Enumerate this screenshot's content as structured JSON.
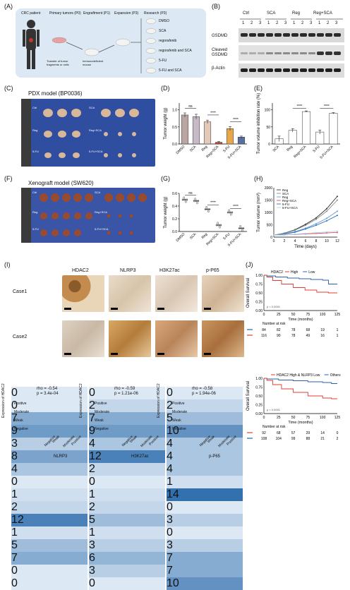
{
  "labels": {
    "A": "(A)",
    "B": "(B)",
    "C": "(C)",
    "D": "(D)",
    "E": "(E)",
    "F": "(F)",
    "G": "(G)",
    "H": "(H)",
    "I": "(I)",
    "J": "(J)"
  },
  "panelA": {
    "steps": [
      "CRC patient",
      "Primary tumors (P0)",
      "Engraftment (P1)",
      "Expansion (P3)",
      "Research (P3)"
    ],
    "transfer_text": "Transfer of tumor fragments or cells",
    "mice_text": "Immunodeficient mouse",
    "treatments": [
      "DMSO",
      "SCA",
      "regorafenib",
      "regorafenib and SCA",
      "5-FU",
      "5-FU and SCA"
    ]
  },
  "panelB": {
    "groups": [
      "Ctrl",
      "SCA",
      "Reg",
      "Reg+SCA"
    ],
    "lanes": [
      "1",
      "2",
      "3",
      "1",
      "2",
      "3",
      "1",
      "2",
      "3",
      "1",
      "2",
      "3"
    ],
    "rows": [
      "GSDMD",
      "Cleaved GSDMD",
      "β-Actin"
    ]
  },
  "panelC": {
    "title": "PDX model (BP0036)",
    "rows": [
      "Ctrl",
      "Reg",
      "5-FU"
    ],
    "right_labels": [
      "SCA",
      "Reg+SCA",
      "5-FU+SCA"
    ]
  },
  "panelF": {
    "title": "Xenograft model (SW620)",
    "rows": [
      "Ctrl",
      "Reg",
      "5-FU"
    ],
    "right_labels": [
      "SCA",
      "Reg+SCA",
      "5-FU+SCA"
    ]
  },
  "chartD": {
    "type": "bar",
    "ylabel": "Tumor weight (g)",
    "categories": [
      "DMSO",
      "SCA",
      "Reg",
      "Reg+SCA",
      "5-FU",
      "5-FU+SCA"
    ],
    "values": [
      0.85,
      0.8,
      0.65,
      0.05,
      0.45,
      0.2
    ],
    "errors": [
      0.06,
      0.07,
      0.05,
      0.02,
      0.06,
      0.03
    ],
    "colors": [
      "#b9a6a2",
      "#c8b9c6",
      "#e3c9b8",
      "#c2522e",
      "#e7a74d",
      "#5a6f9d"
    ],
    "ylim": [
      0,
      1.2
    ],
    "yticks": [
      "0.0",
      "0.5",
      "1.0"
    ],
    "sig": [
      "ns",
      "****",
      "****"
    ]
  },
  "chartE": {
    "type": "bar",
    "ylabel": "Tumor volume inhibition rate (%)",
    "categories": [
      "SCA",
      "Reg",
      "Reg+SCA",
      "5-FU",
      "5-FU+SCA"
    ],
    "values": [
      15,
      40,
      95,
      35,
      90
    ],
    "errors": [
      8,
      5,
      2,
      6,
      2
    ],
    "colors": [
      "#ffffff",
      "#ffffff",
      "#ffffff",
      "#ffffff",
      "#ffffff"
    ],
    "ylim": [
      0,
      120
    ],
    "yticks": [
      "0",
      "50",
      "100"
    ],
    "sig": [
      "****",
      "****"
    ]
  },
  "chartG": {
    "type": "scatter",
    "ylabel": "Tumor weight (g)",
    "categories": [
      "DMSO",
      "SCA",
      "Reg",
      "Reg+SCA",
      "5-FU",
      "5-FU+SCA"
    ],
    "values": [
      0.5,
      0.48,
      0.35,
      0.1,
      0.3,
      0.05
    ],
    "ylim": [
      0,
      0.6
    ],
    "yticks": [
      "0.0",
      "0.2",
      "0.4",
      "0.6"
    ],
    "sig": [
      "ns",
      "****",
      "****"
    ]
  },
  "chartH": {
    "type": "line",
    "xlabel": "Time (days)",
    "ylabel": "Tumor volume (mm³)",
    "x": [
      0,
      2,
      4,
      6,
      8,
      10,
      12
    ],
    "xticks": [
      "0",
      "2",
      "4",
      "6",
      "8",
      "10",
      "12"
    ],
    "yticks": [
      "0",
      "500",
      "1000",
      "1500",
      "2000"
    ],
    "ylim": [
      0,
      2000
    ],
    "series": [
      {
        "name": "Reg",
        "color": "#333333",
        "values": [
          80,
          160,
          300,
          520,
          780,
          1150,
          1650
        ]
      },
      {
        "name": "SCA",
        "color": "#888888",
        "values": [
          80,
          150,
          280,
          480,
          720,
          1050,
          1500
        ]
      },
      {
        "name": "Reg",
        "color": "#5b9bd5",
        "values": [
          80,
          130,
          220,
          360,
          540,
          760,
          1050
        ]
      },
      {
        "name": "Reg+SCA",
        "color": "#e84a5f",
        "values": [
          80,
          90,
          110,
          130,
          150,
          170,
          190
        ]
      },
      {
        "name": "5-FU",
        "color": "#2c6fbb",
        "values": [
          80,
          120,
          200,
          330,
          480,
          660,
          880
        ]
      },
      {
        "name": "5-FU+SCA",
        "color": "#a6d8f0",
        "values": [
          80,
          95,
          120,
          150,
          180,
          210,
          240
        ]
      }
    ]
  },
  "panelI": {
    "markers": [
      "HDAC2",
      "NLRP3",
      "H3K27ac",
      "p-P65"
    ],
    "cases": [
      "Case1",
      "Case2"
    ]
  },
  "heatmaps": [
    {
      "rho": "rho = -0.54",
      "p": "p = 3.4e-04",
      "xlabel": "NLRP3",
      "matrix": [
        [
          0,
          0,
          7,
          9
        ],
        [
          3,
          8,
          4,
          0
        ],
        [
          1,
          2,
          12,
          1
        ],
        [
          5,
          7,
          0,
          0
        ]
      ]
    },
    {
      "rho": "rho = -0.59",
      "p": "p = 1.21e-06",
      "xlabel": "H3K27ac",
      "matrix": [
        [
          0,
          2,
          7,
          9
        ],
        [
          4,
          12,
          2,
          0
        ],
        [
          1,
          2,
          5,
          1
        ],
        [
          3,
          6,
          3,
          0
        ]
      ]
    },
    {
      "rho": "rho = -0.58",
      "p": "p = 1.94e-06",
      "xlabel": "p-P65",
      "matrix": [
        [
          0,
          2,
          5,
          10
        ],
        [
          4,
          4,
          4,
          1
        ],
        [
          14,
          0,
          3,
          0
        ],
        [
          3,
          7,
          7,
          10
        ]
      ]
    }
  ],
  "heatmap_common": {
    "ylabel": "Expression of HDAC2",
    "rows": [
      "Positive",
      "Moderate",
      "Weak",
      "Negative"
    ],
    "cols": [
      "Negative",
      "Weak",
      "Moderate",
      "Positive"
    ]
  },
  "km1": {
    "type": "line",
    "legend": [
      "HDAC2",
      "High",
      "Low"
    ],
    "ylabel": "Overall Survival",
    "xlabel": "Time (months)",
    "pvalue": "p < 0.0001",
    "risk_title": "Number at risk",
    "xticks": [
      "0",
      "25",
      "50",
      "75",
      "100",
      "125"
    ],
    "yticks": [
      "0.00",
      "0.25",
      "0.50",
      "0.75",
      "1.00"
    ],
    "risk_rows": [
      {
        "n": "84",
        "vals": [
          "84",
          "82",
          "78",
          "68",
          "19",
          "1"
        ],
        "color": "#2c5fa8"
      },
      {
        "n": "116",
        "vals": [
          "116",
          "90",
          "78",
          "49",
          "16",
          "1"
        ],
        "color": "#e03c31"
      }
    ]
  },
  "km2": {
    "type": "line",
    "legend": [
      "HDAC2 High & NLRP3 Low",
      "Others"
    ],
    "ylabel": "Overall Survival",
    "xlabel": "Time (months)",
    "pvalue": "p < 0.0001",
    "risk_title": "Number at risk",
    "xticks": [
      "0",
      "25",
      "50",
      "75",
      "100",
      "125"
    ],
    "yticks": [
      "0.00",
      "0.25",
      "0.50",
      "0.75",
      "1.00"
    ],
    "risk_rows": [
      {
        "n": "92",
        "vals": [
          "92",
          "68",
          "57",
          "29",
          "14",
          "0"
        ],
        "color": "#e03c31"
      },
      {
        "n": "108",
        "vals": [
          "108",
          "104",
          "99",
          "88",
          "21",
          "2"
        ],
        "color": "#2c5fa8"
      }
    ]
  }
}
